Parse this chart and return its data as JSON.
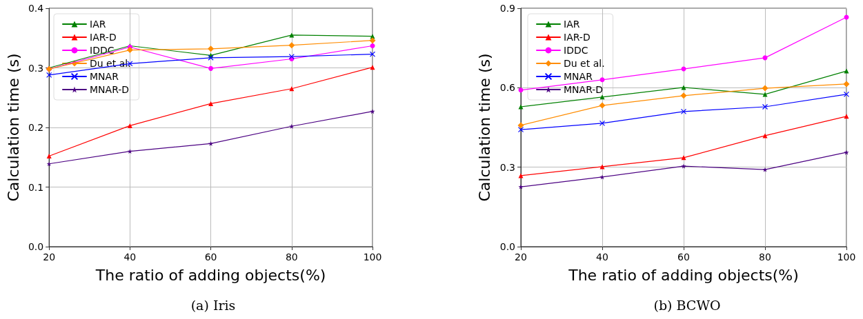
{
  "chart_data": [
    {
      "type": "line",
      "title": "(a) Iris",
      "xlabel": "The ratio of adding objects(%)",
      "ylabel": "Calculation time (s)",
      "x": [
        20,
        40,
        60,
        80,
        100
      ],
      "xlim": [
        20,
        100
      ],
      "xticks": [
        20,
        40,
        60,
        80,
        100
      ],
      "ylim": [
        0,
        0.4
      ],
      "yticks": [
        {
          "value": 0,
          "label": "0.0"
        },
        0.1,
        0.2,
        0.3,
        0.4
      ],
      "grid": true,
      "legend": "top left",
      "series": [
        {
          "name": "IAR",
          "color": "#008000",
          "marker": "triangle",
          "values": [
            0.3,
            0.337,
            0.321,
            0.355,
            0.353
          ]
        },
        {
          "name": "IAR-D",
          "color": "#ff0000",
          "marker": "triangle",
          "values": [
            0.152,
            0.203,
            0.24,
            0.265,
            0.301
          ]
        },
        {
          "name": "IDDC",
          "color": "#ff00ff",
          "marker": "circle",
          "values": [
            0.298,
            0.335,
            0.299,
            0.315,
            0.337
          ]
        },
        {
          "name": "Du et al.",
          "color": "#ff8c00",
          "marker": "diamond",
          "values": [
            0.298,
            0.33,
            0.332,
            0.338,
            0.346
          ]
        },
        {
          "name": "MNAR",
          "color": "#0000ff",
          "marker": "cross",
          "values": [
            0.288,
            0.307,
            0.317,
            0.319,
            0.323
          ]
        },
        {
          "name": "MNAR-D",
          "color": "#4b0082",
          "marker": "star",
          "values": [
            0.139,
            0.16,
            0.173,
            0.202,
            0.227
          ]
        }
      ]
    },
    {
      "type": "line",
      "title": "(b) BCWO",
      "xlabel": "The ratio of adding objects(%)",
      "ylabel": "Calculation time (s)",
      "x": [
        20,
        40,
        60,
        80,
        100
      ],
      "xlim": [
        20,
        100
      ],
      "xticks": [
        20,
        40,
        60,
        80,
        100
      ],
      "ylim": [
        0,
        0.9
      ],
      "yticks": [
        {
          "value": 0,
          "label": "0.0"
        },
        0.3,
        0.6,
        0.9
      ],
      "grid": true,
      "legend": "top left",
      "series": [
        {
          "name": "IAR",
          "color": "#008000",
          "marker": "triangle",
          "values": [
            0.528,
            0.565,
            0.601,
            0.575,
            0.663
          ]
        },
        {
          "name": "IAR-D",
          "color": "#ff0000",
          "marker": "triangle",
          "values": [
            0.268,
            0.302,
            0.336,
            0.419,
            0.492
          ]
        },
        {
          "name": "IDDC",
          "color": "#ff00ff",
          "marker": "circle",
          "values": [
            0.591,
            0.63,
            0.671,
            0.713,
            0.866
          ]
        },
        {
          "name": "Du et al.",
          "color": "#ff8c00",
          "marker": "diamond",
          "values": [
            0.458,
            0.533,
            0.57,
            0.598,
            0.614
          ]
        },
        {
          "name": "MNAR",
          "color": "#0000ff",
          "marker": "cross",
          "values": [
            0.442,
            0.466,
            0.51,
            0.528,
            0.575
          ]
        },
        {
          "name": "MNAR-D",
          "color": "#4b0082",
          "marker": "star",
          "values": [
            0.226,
            0.263,
            0.304,
            0.291,
            0.356
          ]
        }
      ]
    }
  ]
}
